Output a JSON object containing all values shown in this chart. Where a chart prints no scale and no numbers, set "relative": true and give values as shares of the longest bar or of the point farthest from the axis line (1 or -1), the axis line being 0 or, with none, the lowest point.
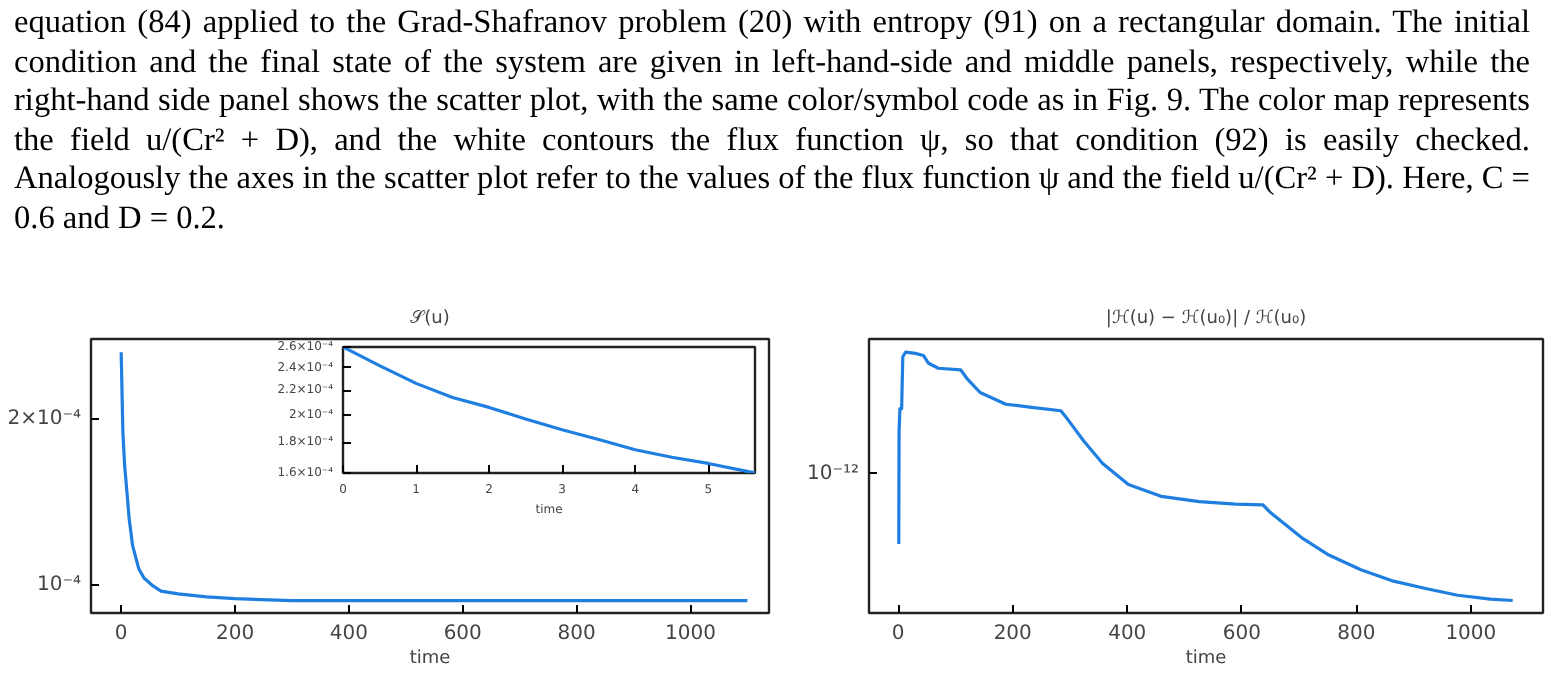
{
  "chart_data": [
    {
      "type": "other",
      "annotations": [
        "equation (84) applied to the Grad-Shafranov problem (20) with entropy (91) on a rectangular domain. The initial condition and the final state of the system are given in left-hand-side and middle panels, respectively, while the right-hand side panel shows the scatter plot, with the same color/symbol code as in Fig. 9. The color map represents the field u/(Cr² + D), and the white contours the flux function ψ, so that condition (92) is easily checked. Analogously the axes in the scatter plot refer to the values of the flux function ψ and the field u/(Cr² + D). Here, C = 0.6 and D = 0.2."
      ]
    },
    {
      "type": "line",
      "title": "𝒮(u)",
      "xlabel": "time",
      "log": "y",
      "color": "#1f7fe0",
      "xlim": [
        -53,
        1138
      ],
      "ylim": [
        8.9e-05,
        0.000279
      ],
      "xticks": [
        0,
        200,
        400,
        600,
        800,
        1000
      ],
      "yticks": [
        {
          "value": 0.0001,
          "label": "10⁻⁴"
        },
        {
          "value": 0.0002,
          "label": "2×10⁻⁴"
        }
      ],
      "x": [
        0,
        3,
        6,
        10,
        14,
        20,
        31,
        40,
        54,
        70,
        100,
        150,
        200,
        300,
        500,
        800,
        1100
      ],
      "values": [
        0.000264,
        0.000189,
        0.000165,
        0.000148,
        0.000132,
        0.000118,
        0.000107,
        0.000103,
        0.0001,
        9.75e-05,
        9.64e-05,
        9.52e-05,
        9.45e-05,
        9.37e-05,
        9.37e-05,
        9.37e-05,
        9.37e-05
      ]
    },
    {
      "type": "line",
      "xlabel": "time",
      "log": "y",
      "color": "#1f7fe0",
      "xlim": [
        0,
        5.64
      ],
      "ylim": [
        0.00016,
        0.00026
      ],
      "xticks": [
        0,
        1,
        2,
        3,
        4,
        5
      ],
      "yticks": [
        {
          "value": 0.00016,
          "label": "1.6×10⁻⁴"
        },
        {
          "value": 0.00018,
          "label": "1.8×10⁻⁴"
        },
        {
          "value": 0.0002,
          "label": "2×10⁻⁴"
        },
        {
          "value": 0.00022,
          "label": "2.2×10⁻⁴"
        },
        {
          "value": 0.00024,
          "label": "2.4×10⁻⁴"
        },
        {
          "value": 0.00026,
          "label": "2.6×10⁻⁴"
        }
      ],
      "x": [
        0,
        0.5,
        1,
        1.5,
        2,
        2.5,
        3,
        3.5,
        4,
        4.5,
        5,
        5.64
      ],
      "values": [
        0.00026,
        0.000242,
        0.000226,
        0.000214,
        0.000206,
        0.000197,
        0.000189,
        0.000182,
        0.000175,
        0.00017,
        0.000166,
        0.00016
      ]
    },
    {
      "type": "line",
      "title": "|ℋ(u) − ℋ(u₀)| / ℋ(u₀)",
      "xlabel": "time",
      "relative": true,
      "annotations": [
        "10⁻¹²"
      ],
      "color": "#1f7fe0",
      "xlim": [
        -51,
        1126
      ],
      "xticks": [
        0,
        200,
        400,
        600,
        800,
        1000
      ],
      "x": [
        1,
        1.5,
        3,
        6,
        8,
        13,
        30,
        44,
        53,
        70,
        109,
        121,
        143,
        188,
        233,
        284,
        295,
        324,
        357,
        402,
        459,
        526,
        589,
        637,
        650,
        707,
        752,
        808,
        865,
        921,
        977,
        1034,
        1073
      ],
      "values": [
        0.264,
        0.695,
        0.783,
        0.783,
        0.982,
        1.0,
        0.995,
        0.987,
        0.957,
        0.938,
        0.932,
        0.896,
        0.845,
        0.8,
        0.788,
        0.775,
        0.745,
        0.659,
        0.573,
        0.492,
        0.447,
        0.427,
        0.417,
        0.414,
        0.385,
        0.285,
        0.222,
        0.166,
        0.122,
        0.094,
        0.068,
        0.053,
        0.048
      ]
    }
  ]
}
